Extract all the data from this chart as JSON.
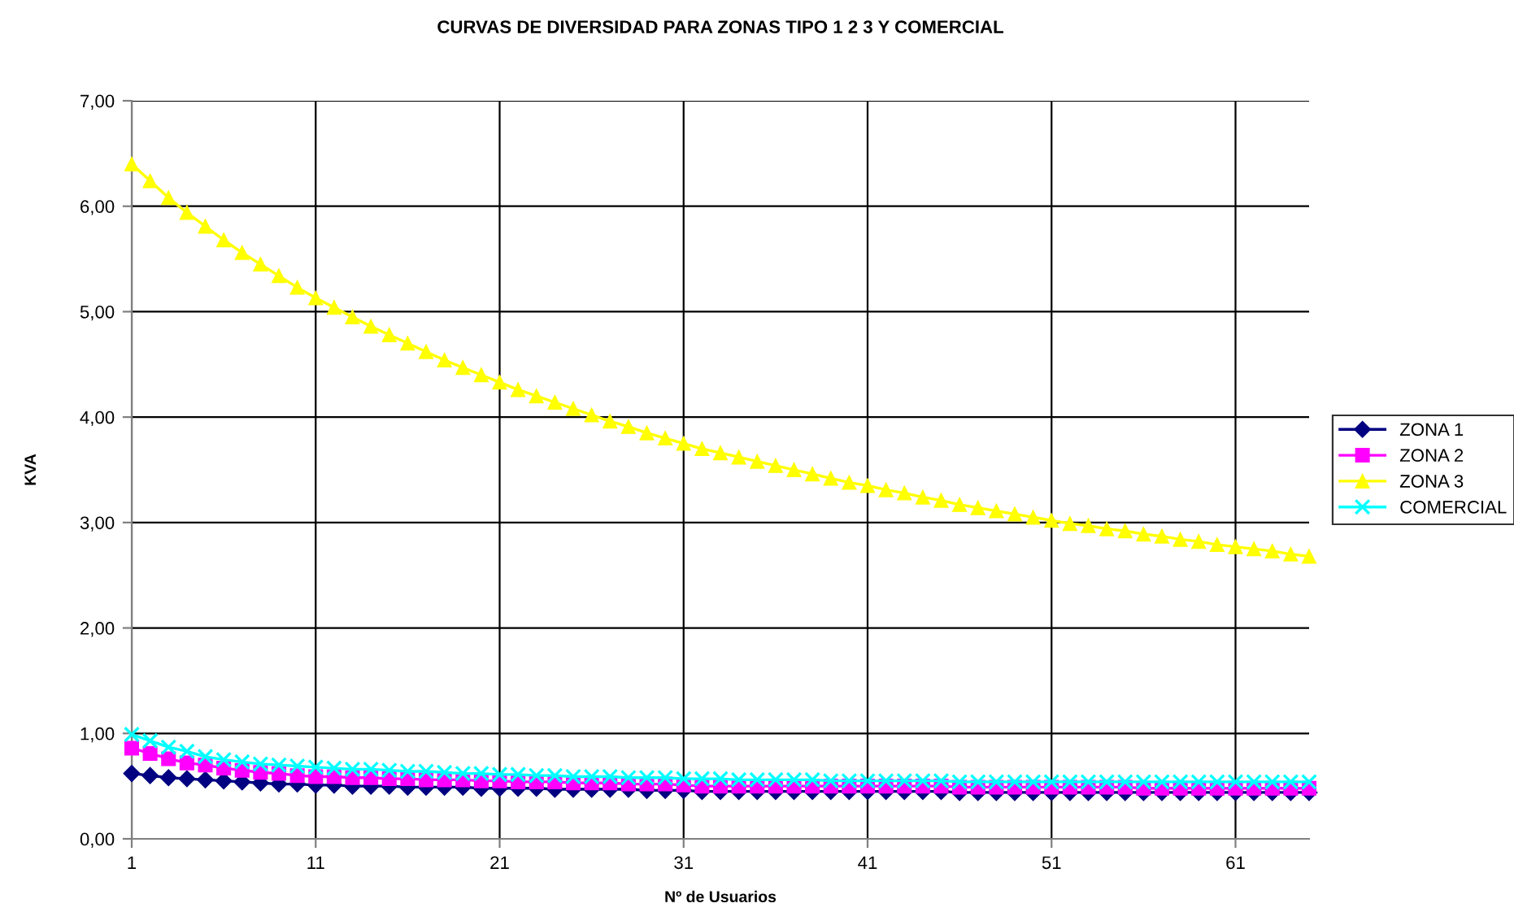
{
  "chart_data": {
    "type": "line",
    "title": "CURVAS DE DIVERSIDAD PARA ZONAS TIPO 1 2 3 Y COMERCIAL",
    "xlabel": "Nº de Usuarios",
    "ylabel": "KVA",
    "x": [
      1,
      2,
      3,
      4,
      5,
      6,
      7,
      8,
      9,
      10,
      11,
      12,
      13,
      14,
      15,
      16,
      17,
      18,
      19,
      20,
      21,
      22,
      23,
      24,
      25,
      26,
      27,
      28,
      29,
      30,
      31,
      32,
      33,
      34,
      35,
      36,
      37,
      38,
      39,
      40,
      41,
      42,
      43,
      44,
      45,
      46,
      47,
      48,
      49,
      50,
      51,
      52,
      53,
      54,
      55,
      56,
      57,
      58,
      59,
      60,
      61,
      62,
      63,
      64,
      65
    ],
    "xlim": [
      1,
      65
    ],
    "xticks": [
      1,
      11,
      21,
      31,
      41,
      51,
      61
    ],
    "ylim": [
      0,
      7
    ],
    "yticks": [
      {
        "value": 0,
        "label": "0,00"
      },
      {
        "value": 1,
        "label": "1,00"
      },
      {
        "value": 2,
        "label": "2,00"
      },
      {
        "value": 3,
        "label": "3,00"
      },
      {
        "value": 4,
        "label": "4,00"
      },
      {
        "value": 5,
        "label": "5,00"
      },
      {
        "value": 6,
        "label": "6,00"
      },
      {
        "value": 7,
        "label": "7,00"
      }
    ],
    "grid": true,
    "legend": "right",
    "line_style": "solid",
    "series": [
      {
        "name": "ZONA 1",
        "color": "#000080",
        "marker": "diamond",
        "values": [
          0.62,
          0.6,
          0.58,
          0.57,
          0.56,
          0.55,
          0.54,
          0.53,
          0.52,
          0.52,
          0.51,
          0.51,
          0.5,
          0.5,
          0.5,
          0.49,
          0.49,
          0.49,
          0.49,
          0.48,
          0.48,
          0.48,
          0.48,
          0.47,
          0.47,
          0.47,
          0.47,
          0.47,
          0.46,
          0.46,
          0.46,
          0.45,
          0.45,
          0.45,
          0.45,
          0.45,
          0.45,
          0.45,
          0.45,
          0.45,
          0.45,
          0.45,
          0.45,
          0.45,
          0.45,
          0.44,
          0.44,
          0.44,
          0.44,
          0.44,
          0.44,
          0.44,
          0.44,
          0.44,
          0.44,
          0.44,
          0.44,
          0.44,
          0.44,
          0.44,
          0.44,
          0.44,
          0.44,
          0.44,
          0.44
        ]
      },
      {
        "name": "ZONA 2",
        "color": "#ff00ff",
        "marker": "square",
        "values": [
          0.86,
          0.81,
          0.76,
          0.72,
          0.7,
          0.67,
          0.65,
          0.63,
          0.62,
          0.6,
          0.59,
          0.59,
          0.58,
          0.58,
          0.57,
          0.57,
          0.56,
          0.56,
          0.56,
          0.55,
          0.55,
          0.54,
          0.54,
          0.54,
          0.53,
          0.53,
          0.53,
          0.52,
          0.52,
          0.52,
          0.51,
          0.5,
          0.5,
          0.5,
          0.5,
          0.5,
          0.5,
          0.5,
          0.5,
          0.5,
          0.5,
          0.5,
          0.5,
          0.5,
          0.5,
          0.49,
          0.49,
          0.49,
          0.49,
          0.49,
          0.49,
          0.49,
          0.49,
          0.49,
          0.49,
          0.48,
          0.48,
          0.48,
          0.48,
          0.48,
          0.48,
          0.48,
          0.48,
          0.48,
          0.48
        ]
      },
      {
        "name": "ZONA 3",
        "color": "#ffff00",
        "marker": "triangle",
        "values": [
          6.4,
          6.24,
          6.08,
          5.94,
          5.81,
          5.68,
          5.56,
          5.45,
          5.34,
          5.23,
          5.13,
          5.04,
          4.95,
          4.86,
          4.78,
          4.7,
          4.62,
          4.54,
          4.47,
          4.4,
          4.33,
          4.26,
          4.2,
          4.14,
          4.08,
          4.02,
          3.96,
          3.91,
          3.85,
          3.8,
          3.75,
          3.7,
          3.66,
          3.62,
          3.58,
          3.54,
          3.5,
          3.46,
          3.42,
          3.38,
          3.35,
          3.31,
          3.28,
          3.24,
          3.21,
          3.17,
          3.14,
          3.11,
          3.08,
          3.05,
          3.02,
          2.99,
          2.97,
          2.94,
          2.92,
          2.89,
          2.87,
          2.84,
          2.82,
          2.79,
          2.77,
          2.75,
          2.73,
          2.7,
          2.68
        ]
      },
      {
        "name": "COMERCIAL",
        "color": "#00ffff",
        "marker": "cross",
        "values": [
          0.99,
          0.93,
          0.87,
          0.83,
          0.78,
          0.75,
          0.73,
          0.71,
          0.7,
          0.69,
          0.68,
          0.67,
          0.66,
          0.66,
          0.65,
          0.64,
          0.64,
          0.63,
          0.62,
          0.62,
          0.61,
          0.61,
          0.6,
          0.6,
          0.59,
          0.59,
          0.59,
          0.58,
          0.58,
          0.58,
          0.57,
          0.57,
          0.57,
          0.56,
          0.56,
          0.56,
          0.56,
          0.56,
          0.55,
          0.55,
          0.55,
          0.55,
          0.55,
          0.55,
          0.55,
          0.54,
          0.54,
          0.54,
          0.54,
          0.54,
          0.54,
          0.54,
          0.54,
          0.54,
          0.54,
          0.54,
          0.54,
          0.54,
          0.54,
          0.54,
          0.54,
          0.54,
          0.54,
          0.54,
          0.54
        ]
      }
    ]
  }
}
